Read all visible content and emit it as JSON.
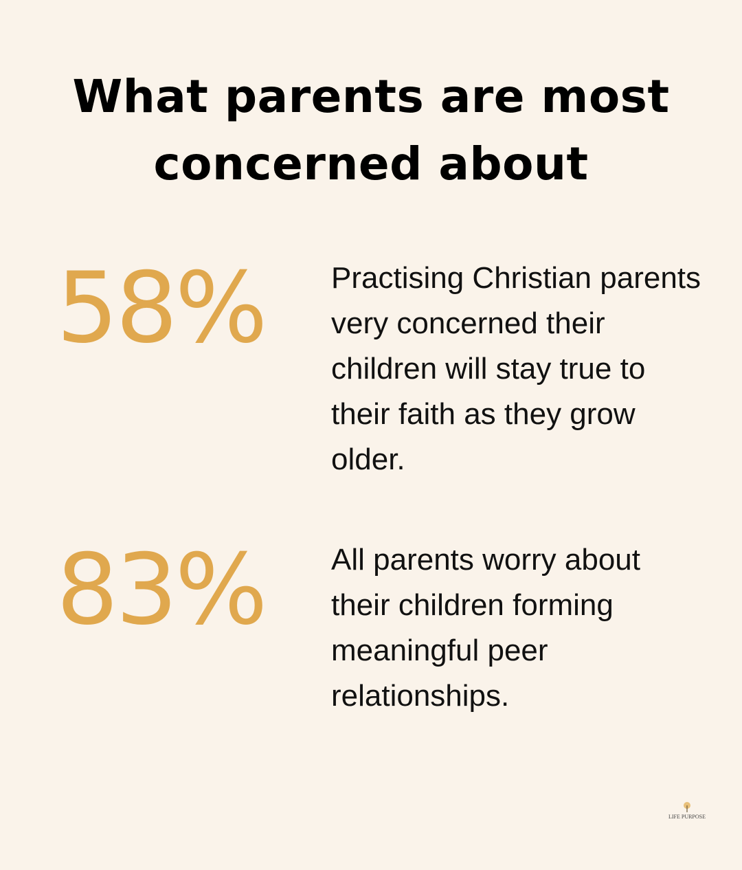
{
  "header": {
    "title": "What parents are most concerned about"
  },
  "stats": [
    {
      "value": "58%",
      "text": "Practising Christian parents very concerned their children will stay true to their faith as they grow older."
    },
    {
      "value": "83%",
      "text": "All parents worry about their children forming meaningful peer relationships."
    }
  ],
  "logo": {
    "name": "LIFE PURPOSE"
  }
}
